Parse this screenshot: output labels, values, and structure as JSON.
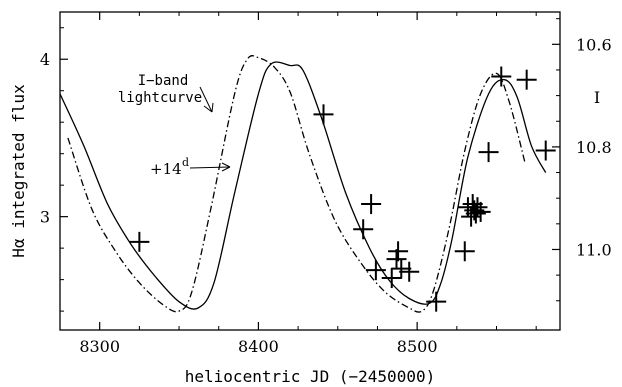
{
  "chart_data": {
    "type": "line",
    "title": "",
    "xlabel": "heliocentric JD (−2450000)",
    "ylabel": "Hα integrated flux",
    "ylabel_right": "I",
    "xlim": [
      8275,
      8590
    ],
    "ylim": [
      2.28,
      4.3
    ],
    "ylim_right": [
      11.157,
      10.537
    ],
    "x_ticks": [
      8300,
      8400,
      8500
    ],
    "x_tick_labels": [
      "8300",
      "8400",
      "8500"
    ],
    "y_ticks": [
      3,
      4
    ],
    "y_tick_labels": [
      "3",
      "4"
    ],
    "y_right_ticks": [
      10.6,
      10.8,
      11.0
    ],
    "y_right_tick_labels": [
      "10.6",
      "10.8",
      "11.0"
    ],
    "grid": false,
    "annotations": [
      {
        "name": "iband-annotation",
        "lines": [
          "I−band",
          "lightcurve"
        ]
      },
      {
        "name": "shift-annotation",
        "text": "+14",
        "superscript": "d"
      }
    ],
    "series": [
      {
        "style": "solid",
        "x": [
          8275,
          8290,
          8305,
          8320,
          8335,
          8350,
          8362,
          8372,
          8385,
          8400,
          8408,
          8420,
          8428,
          8440,
          8455,
          8470,
          8482,
          8495,
          8508,
          8515,
          8522,
          8532,
          8545,
          8555,
          8563,
          8572,
          8581
        ],
        "y": [
          3.78,
          3.45,
          3.08,
          2.82,
          2.62,
          2.46,
          2.42,
          2.58,
          3.15,
          3.78,
          3.97,
          3.96,
          3.93,
          3.62,
          3.15,
          2.8,
          2.6,
          2.48,
          2.45,
          2.58,
          2.86,
          3.38,
          3.78,
          3.87,
          3.76,
          3.45,
          3.28
        ]
      },
      {
        "style": "dashdot",
        "x": [
          8280,
          8295,
          8310,
          8325,
          8340,
          8350,
          8358,
          8370,
          8385,
          8393,
          8400,
          8410,
          8420,
          8432,
          8448,
          8465,
          8480,
          8495,
          8503,
          8510,
          8520,
          8530,
          8540,
          8550,
          8558,
          8568
        ],
        "y": [
          3.5,
          3.05,
          2.78,
          2.58,
          2.44,
          2.4,
          2.52,
          3.05,
          3.78,
          4.0,
          4.01,
          3.95,
          3.79,
          3.4,
          2.98,
          2.7,
          2.52,
          2.42,
          2.4,
          2.52,
          2.92,
          3.42,
          3.78,
          3.91,
          3.73,
          3.34
        ]
      }
    ],
    "points": {
      "marker": "plus",
      "x": [
        8325,
        8441,
        8466,
        8471,
        8474,
        8484,
        8487,
        8488,
        8490,
        8495,
        8512,
        8530,
        8532,
        8534,
        8535,
        8536,
        8537,
        8538,
        8540,
        8545,
        8553,
        8569,
        8581
      ],
      "y": [
        2.84,
        3.65,
        2.92,
        3.08,
        2.66,
        2.61,
        2.73,
        2.78,
        2.67,
        2.65,
        2.46,
        2.78,
        3.06,
        3.0,
        3.08,
        3.04,
        3.02,
        3.06,
        3.03,
        3.41,
        3.89,
        3.87,
        3.42
      ]
    }
  }
}
